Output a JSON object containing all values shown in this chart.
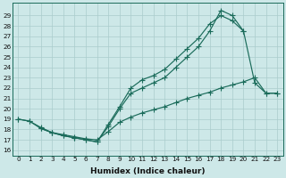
{
  "xlabel": "Humidex (Indice chaleur)",
  "bg_color": "#cde8e8",
  "grid_color": "#aacccc",
  "line_color": "#1a6b5a",
  "xlim": [
    -0.5,
    23.5
  ],
  "ylim": [
    15.5,
    30.2
  ],
  "yticks": [
    16,
    17,
    18,
    19,
    20,
    21,
    22,
    23,
    24,
    25,
    26,
    27,
    28,
    29
  ],
  "xticks": [
    0,
    1,
    2,
    3,
    4,
    5,
    6,
    7,
    8,
    9,
    10,
    11,
    12,
    13,
    14,
    15,
    16,
    17,
    18,
    19,
    20,
    21,
    22,
    23
  ],
  "line1_x": [
    0,
    1,
    2,
    3,
    4,
    5,
    6,
    7,
    8,
    9,
    10,
    11,
    12,
    13,
    14,
    15,
    16,
    17,
    18,
    19,
    20,
    21,
    22,
    23
  ],
  "line1_y": [
    19.0,
    18.8,
    18.1,
    17.7,
    17.4,
    17.2,
    17.0,
    16.8,
    18.3,
    20.0,
    21.5,
    22.0,
    22.5,
    23.0,
    24.0,
    25.0,
    26.0,
    27.5,
    29.5,
    29.0,
    27.5,
    22.5,
    21.5,
    21.5
  ],
  "line2_x": [
    2,
    3,
    4,
    5,
    6,
    7,
    8,
    9,
    10,
    11,
    12,
    13,
    14,
    15,
    16,
    17,
    18,
    19,
    20
  ],
  "line2_y": [
    18.1,
    17.7,
    17.4,
    17.2,
    17.0,
    16.8,
    18.5,
    20.2,
    22.0,
    22.8,
    23.2,
    23.8,
    24.8,
    25.8,
    26.8,
    28.2,
    29.0,
    28.5,
    27.5
  ],
  "line3_x": [
    0,
    1,
    2,
    3,
    4,
    5,
    6,
    7,
    8,
    9,
    10,
    11,
    12,
    13,
    14,
    15,
    16,
    17,
    18,
    19,
    20,
    21,
    22,
    23
  ],
  "line3_y": [
    19.0,
    18.8,
    18.2,
    17.7,
    17.5,
    17.3,
    17.1,
    17.0,
    17.8,
    18.7,
    19.2,
    19.6,
    19.9,
    20.2,
    20.6,
    21.0,
    21.3,
    21.6,
    22.0,
    22.3,
    22.6,
    23.0,
    21.5,
    21.5
  ]
}
